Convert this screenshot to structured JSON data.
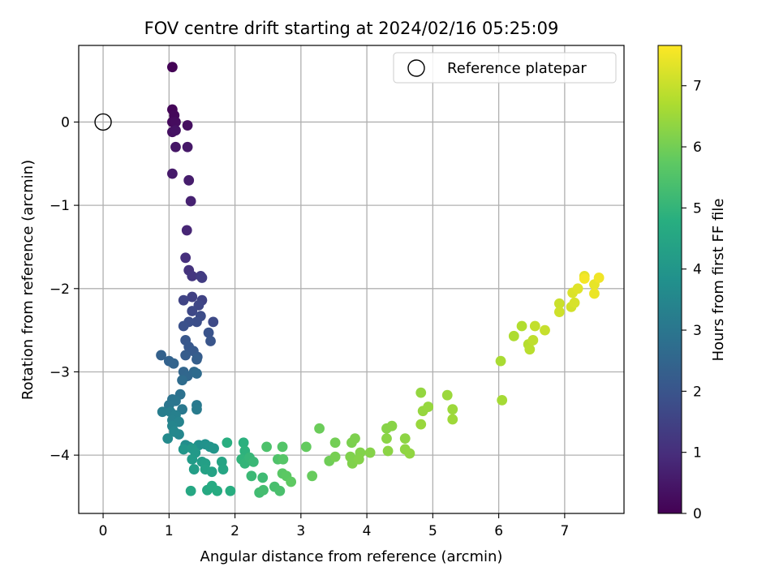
{
  "chart_data": {
    "type": "scatter",
    "title": "FOV centre drift starting at 2024/02/16 05:25:09",
    "xlabel": "Angular distance from reference (arcmin)",
    "ylabel": "Rotation from reference (arcmin)",
    "xlim": [
      -0.37,
      7.9
    ],
    "ylim": [
      -4.7,
      0.92
    ],
    "xticks": [
      "0",
      "1",
      "2",
      "3",
      "4",
      "5",
      "6",
      "7"
    ],
    "yticks": [
      "0",
      "−1",
      "−2",
      "−3",
      "−4"
    ],
    "grid": true,
    "legend": {
      "position": "top-right",
      "entries": [
        "Reference platepar"
      ]
    },
    "reference_point": {
      "x": 0,
      "y": 0
    },
    "colorbar": {
      "label": "Hours from first FF file",
      "colormap": "viridis",
      "range": [
        0,
        7.66
      ],
      "ticks": [
        "0",
        "1",
        "2",
        "3",
        "4",
        "5",
        "6",
        "7"
      ]
    },
    "points": [
      [
        1.05,
        0.66,
        0.05
      ],
      [
        1.05,
        0.15,
        0.1
      ],
      [
        1.08,
        0.08,
        0.15
      ],
      [
        1.05,
        0.0,
        0.2
      ],
      [
        1.1,
        0.0,
        0.25
      ],
      [
        1.28,
        -0.04,
        0.3
      ],
      [
        1.05,
        -0.12,
        0.35
      ],
      [
        1.1,
        -0.1,
        0.4
      ],
      [
        1.1,
        -0.3,
        0.45
      ],
      [
        1.28,
        -0.3,
        0.5
      ],
      [
        1.05,
        -0.62,
        0.55
      ],
      [
        1.3,
        -0.7,
        0.6
      ],
      [
        1.33,
        -0.95,
        0.7
      ],
      [
        1.27,
        -1.3,
        0.8
      ],
      [
        1.25,
        -1.63,
        1.0
      ],
      [
        1.3,
        -1.78,
        1.1
      ],
      [
        1.35,
        -1.85,
        1.2
      ],
      [
        1.48,
        -1.85,
        1.3
      ],
      [
        1.5,
        -1.87,
        1.35
      ],
      [
        1.35,
        -2.1,
        1.45
      ],
      [
        1.5,
        -2.14,
        1.5
      ],
      [
        1.22,
        -2.14,
        1.55
      ],
      [
        1.45,
        -2.2,
        1.6
      ],
      [
        1.35,
        -2.27,
        1.65
      ],
      [
        1.67,
        -2.4,
        1.7
      ],
      [
        1.48,
        -2.33,
        1.75
      ],
      [
        1.42,
        -2.4,
        1.8
      ],
      [
        1.3,
        -2.4,
        1.85
      ],
      [
        1.22,
        -2.45,
        1.9
      ],
      [
        1.6,
        -2.53,
        1.95
      ],
      [
        1.63,
        -2.63,
        2.0
      ],
      [
        1.25,
        -2.62,
        2.05
      ],
      [
        1.3,
        -2.7,
        2.1
      ],
      [
        1.37,
        -2.75,
        2.15
      ],
      [
        1.43,
        -2.82,
        2.2
      ],
      [
        1.25,
        -2.8,
        2.25
      ],
      [
        1.42,
        -2.85,
        2.3
      ],
      [
        0.88,
        -2.8,
        2.35
      ],
      [
        1.0,
        -2.87,
        2.4
      ],
      [
        1.07,
        -2.9,
        2.45
      ],
      [
        1.22,
        -3.0,
        2.5
      ],
      [
        1.28,
        -3.05,
        2.55
      ],
      [
        1.38,
        -3.0,
        2.6
      ],
      [
        1.42,
        -3.02,
        2.65
      ],
      [
        1.2,
        -3.1,
        2.7
      ],
      [
        1.17,
        -3.27,
        2.85
      ],
      [
        1.05,
        -3.33,
        2.9
      ],
      [
        1.1,
        -3.35,
        2.95
      ],
      [
        1.0,
        -3.4,
        3.0
      ],
      [
        1.2,
        -3.45,
        3.05
      ],
      [
        1.42,
        -3.4,
        3.1
      ],
      [
        1.42,
        -3.45,
        3.15
      ],
      [
        0.9,
        -3.48,
        3.2
      ],
      [
        1.02,
        -3.48,
        3.25
      ],
      [
        1.1,
        -3.52,
        3.3
      ],
      [
        1.05,
        -3.58,
        3.35
      ],
      [
        1.15,
        -3.6,
        3.4
      ],
      [
        1.05,
        -3.65,
        3.45
      ],
      [
        1.15,
        -3.75,
        3.5
      ],
      [
        1.08,
        -3.72,
        3.55
      ],
      [
        0.98,
        -3.8,
        3.6
      ],
      [
        1.25,
        -3.88,
        3.7
      ],
      [
        1.3,
        -3.9,
        3.75
      ],
      [
        1.45,
        -3.88,
        3.8
      ],
      [
        1.55,
        -3.87,
        3.85
      ],
      [
        1.62,
        -3.9,
        3.9
      ],
      [
        1.68,
        -3.92,
        3.95
      ],
      [
        1.22,
        -3.93,
        4.0
      ],
      [
        1.35,
        -3.92,
        4.05
      ],
      [
        1.4,
        -3.97,
        4.1
      ],
      [
        1.35,
        -4.05,
        4.15
      ],
      [
        1.5,
        -4.08,
        4.2
      ],
      [
        1.38,
        -4.17,
        4.25
      ],
      [
        1.55,
        -4.1,
        4.3
      ],
      [
        1.55,
        -4.17,
        4.35
      ],
      [
        1.65,
        -4.2,
        4.4
      ],
      [
        1.8,
        -4.08,
        4.45
      ],
      [
        1.82,
        -4.17,
        4.5
      ],
      [
        1.33,
        -4.43,
        4.55
      ],
      [
        1.58,
        -4.42,
        4.6
      ],
      [
        1.65,
        -4.37,
        4.65
      ],
      [
        1.73,
        -4.43,
        4.7
      ],
      [
        1.93,
        -4.43,
        4.75
      ],
      [
        1.88,
        -3.85,
        4.8
      ],
      [
        2.13,
        -3.85,
        4.85
      ],
      [
        2.15,
        -3.95,
        4.9
      ],
      [
        2.1,
        -4.05,
        4.95
      ],
      [
        2.15,
        -4.1,
        5.0
      ],
      [
        2.22,
        -4.03,
        5.05
      ],
      [
        2.28,
        -4.08,
        5.1
      ],
      [
        2.25,
        -4.25,
        5.15
      ],
      [
        2.42,
        -4.27,
        5.2
      ],
      [
        2.37,
        -4.45,
        5.25
      ],
      [
        2.43,
        -4.42,
        5.3
      ],
      [
        2.6,
        -4.38,
        5.35
      ],
      [
        2.68,
        -4.43,
        5.4
      ],
      [
        2.48,
        -3.9,
        5.45
      ],
      [
        2.65,
        -4.05,
        5.5
      ],
      [
        2.72,
        -3.9,
        5.55
      ],
      [
        2.73,
        -4.05,
        5.6
      ],
      [
        2.72,
        -4.22,
        5.65
      ],
      [
        2.78,
        -4.25,
        5.7
      ],
      [
        2.85,
        -4.32,
        5.75
      ],
      [
        3.08,
        -3.9,
        5.8
      ],
      [
        3.17,
        -4.25,
        5.85
      ],
      [
        3.28,
        -3.68,
        5.9
      ],
      [
        3.43,
        -4.07,
        5.95
      ],
      [
        3.52,
        -3.85,
        6.0
      ],
      [
        3.52,
        -4.02,
        6.05
      ],
      [
        3.77,
        -3.85,
        6.1
      ],
      [
        3.82,
        -3.8,
        6.12
      ],
      [
        3.75,
        -4.02,
        6.14
      ],
      [
        3.78,
        -4.1,
        6.16
      ],
      [
        3.9,
        -3.97,
        6.18
      ],
      [
        3.88,
        -4.05,
        6.2
      ],
      [
        4.05,
        -3.97,
        6.22
      ],
      [
        4.3,
        -3.68,
        6.24
      ],
      [
        4.38,
        -3.65,
        6.26
      ],
      [
        4.3,
        -3.8,
        6.28
      ],
      [
        4.32,
        -3.95,
        6.3
      ],
      [
        4.58,
        -3.8,
        6.32
      ],
      [
        4.58,
        -3.93,
        6.34
      ],
      [
        4.65,
        -3.98,
        6.36
      ],
      [
        4.82,
        -3.25,
        6.4
      ],
      [
        4.85,
        -3.47,
        6.42
      ],
      [
        4.93,
        -3.42,
        6.44
      ],
      [
        4.82,
        -3.63,
        6.46
      ],
      [
        5.22,
        -3.28,
        6.48
      ],
      [
        5.3,
        -3.45,
        6.5
      ],
      [
        5.3,
        -3.57,
        6.52
      ],
      [
        6.05,
        -3.34,
        6.6
      ],
      [
        6.03,
        -2.87,
        6.65
      ],
      [
        6.23,
        -2.57,
        6.7
      ],
      [
        6.35,
        -2.45,
        6.75
      ],
      [
        6.45,
        -2.67,
        6.8
      ],
      [
        6.47,
        -2.73,
        6.85
      ],
      [
        6.52,
        -2.62,
        6.9
      ],
      [
        6.55,
        -2.45,
        6.95
      ],
      [
        6.7,
        -2.5,
        7.0
      ],
      [
        6.92,
        -2.18,
        7.05
      ],
      [
        6.92,
        -2.28,
        7.1
      ],
      [
        7.1,
        -2.22,
        7.15
      ],
      [
        7.15,
        -2.17,
        7.2
      ],
      [
        7.12,
        -2.05,
        7.25
      ],
      [
        7.2,
        -2.0,
        7.3
      ],
      [
        7.3,
        -1.85,
        7.35
      ],
      [
        7.45,
        -1.95,
        7.4
      ],
      [
        7.45,
        -2.06,
        7.45
      ],
      [
        7.52,
        -1.87,
        7.5
      ],
      [
        7.3,
        -1.88,
        7.55
      ]
    ]
  }
}
